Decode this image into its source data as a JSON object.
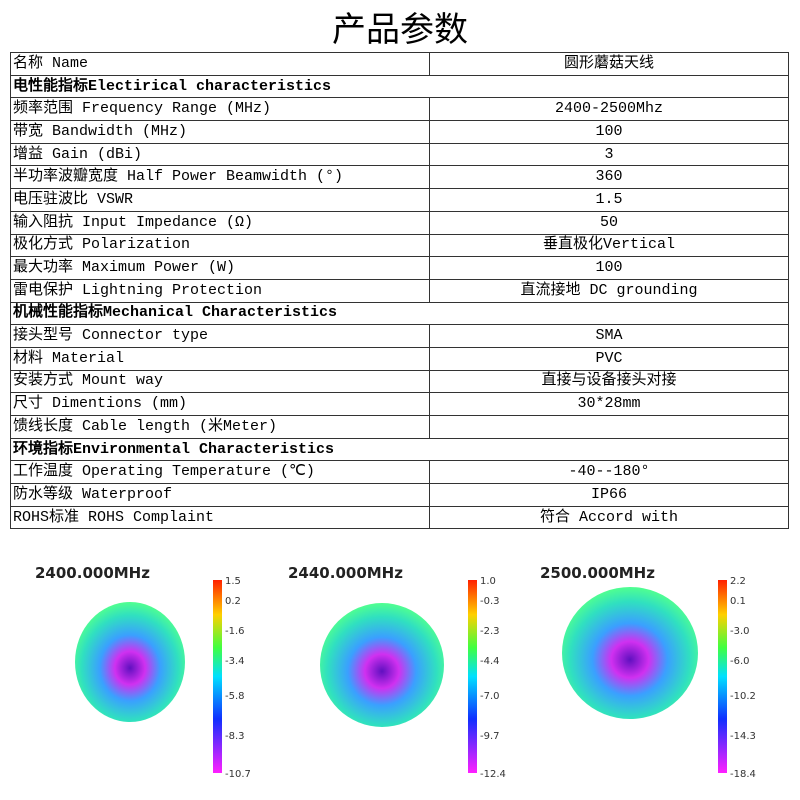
{
  "title": "产品参数",
  "table": {
    "rows": [
      {
        "label": "名称 Name",
        "value": "圆形蘑菇天线"
      },
      {
        "section": "电性能指标Electirical characteristics"
      },
      {
        "label": "频率范围 Frequency Range (MHz)",
        "value": "2400-2500Mhz"
      },
      {
        "label": "带宽 Bandwidth (MHz)",
        "value": "100"
      },
      {
        "label": "增益 Gain (dBi)",
        "value": "3"
      },
      {
        "label": "半功率波瓣宽度 Half Power Beamwidth (°)",
        "value": "360"
      },
      {
        "label": "电压驻波比 VSWR",
        "value": "1.5"
      },
      {
        "label": "输入阻抗 Input Impedance (Ω)",
        "value": "50"
      },
      {
        "label": "极化方式  Polarization",
        "value": "垂直极化Vertical"
      },
      {
        "label": "最大功率  Maximum Power  (W)",
        "value": "100"
      },
      {
        "label": "雷电保护  Lightning Protection",
        "value": "直流接地 DC grounding"
      },
      {
        "section": "机械性能指标Mechanical Characteristics"
      },
      {
        "label": "接头型号  Connector type",
        "value": "SMA"
      },
      {
        "label": "材料 Material",
        "value": "PVC"
      },
      {
        "label": "安装方式 Mount way",
        "value": "直接与设备接头对接"
      },
      {
        "label": "尺寸  Dimentions (mm)",
        "value": "30*28mm"
      },
      {
        "label": "馈线长度 Cable length (米Meter)"
      },
      {
        "section": "环境指标Environmental Characteristics"
      },
      {
        "label": "工作温度 Operating Temperature (℃)",
        "value": "-40--180°"
      },
      {
        "label": "防水等级 Waterproof",
        "value": "IP66"
      },
      {
        "label": "ROHS标准 ROHS Complaint",
        "value": "符合 Accord with"
      }
    ]
  },
  "patterns": [
    {
      "frequency": "2400.000MHz",
      "scale": [
        "1.5",
        "0.2",
        "-1.6",
        "-3.4",
        "-5.8",
        "-8.3",
        "-10.7"
      ]
    },
    {
      "frequency": "2440.000MHz",
      "scale": [
        "1.0",
        "-0.3",
        "-2.3",
        "-4.4",
        "-7.0",
        "-9.7",
        "-12.4"
      ]
    },
    {
      "frequency": "2500.000MHz",
      "scale": [
        "2.2",
        "0.1",
        "-3.0",
        "-6.0",
        "-10.2",
        "-14.3",
        "-18.4"
      ]
    }
  ]
}
